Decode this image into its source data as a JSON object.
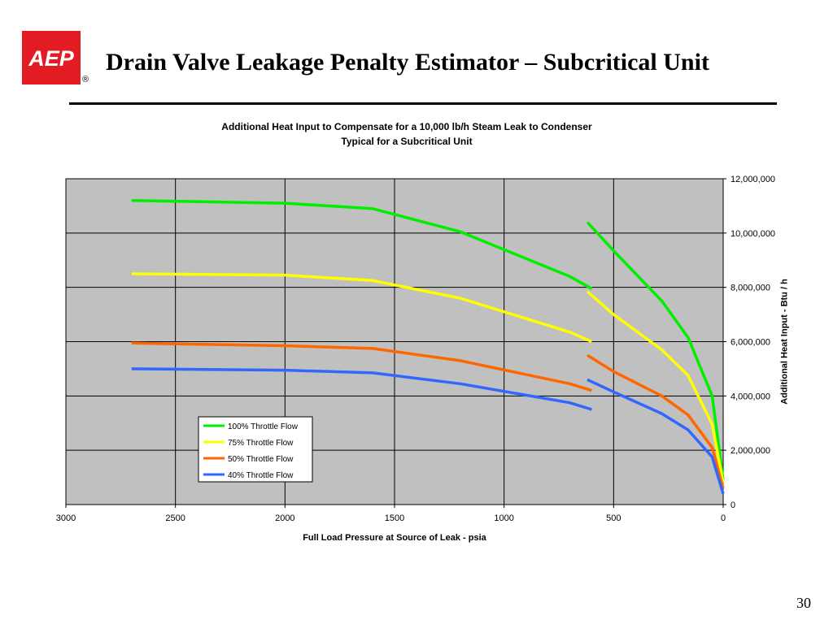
{
  "slide": {
    "title": "Drain Valve Leakage Penalty Estimator – Subcritical Unit",
    "page_number": "30",
    "logo_text": "AEP",
    "logo_mark": "®",
    "brand_color": "#e31b23"
  },
  "chart_data": {
    "type": "line",
    "title": "Additional Heat Input to Compensate for a 10,000 lb/h Steam Leak to Condenser",
    "subtitle": "Typical for a Subcritical Unit",
    "xlabel": "Full Load Pressure at Source of Leak - psia",
    "ylabel": "Additional Heat Input - Btu / h",
    "x_reversed": true,
    "xlim": [
      0,
      3000
    ],
    "ylim": [
      0,
      12000000
    ],
    "x_ticks": [
      3000,
      2500,
      2000,
      1500,
      1000,
      500,
      0
    ],
    "x_tick_labels": [
      "3000",
      "2500",
      "2000",
      "1500",
      "1000",
      "500",
      "0"
    ],
    "y_ticks": [
      0,
      2000000,
      4000000,
      6000000,
      8000000,
      10000000,
      12000000
    ],
    "y_tick_labels": [
      "0",
      "2,000,000",
      "4,000,000",
      "6,000,000",
      "8,000,000",
      "10,000,000",
      "12,000,000"
    ],
    "y_axis_side": "right",
    "grid": true,
    "plot_background": "#c0c0c0",
    "legend_position": "bottom-left",
    "series": [
      {
        "name": "100% Throttle Flow",
        "color": "#00ee00",
        "segments": [
          [
            [
              2700,
              11200000
            ],
            [
              2000,
              11100000
            ],
            [
              1600,
              10900000
            ],
            [
              1200,
              10050000
            ],
            [
              700,
              8400000
            ],
            [
              600,
              7950000
            ]
          ],
          [
            [
              620,
              10400000
            ],
            [
              500,
              9350000
            ],
            [
              280,
              7500000
            ],
            [
              160,
              6150000
            ],
            [
              50,
              4000000
            ],
            [
              0,
              900000
            ]
          ]
        ]
      },
      {
        "name": "75% Throttle Flow",
        "color": "#ffff00",
        "segments": [
          [
            [
              2700,
              8500000
            ],
            [
              2000,
              8450000
            ],
            [
              1600,
              8250000
            ],
            [
              1200,
              7600000
            ],
            [
              700,
              6350000
            ],
            [
              600,
              6000000
            ]
          ],
          [
            [
              620,
              7850000
            ],
            [
              500,
              7000000
            ],
            [
              280,
              5700000
            ],
            [
              160,
              4750000
            ],
            [
              50,
              2950000
            ],
            [
              0,
              800000
            ]
          ]
        ]
      },
      {
        "name": "50% Throttle Flow",
        "color": "#ff6600",
        "segments": [
          [
            [
              2700,
              5950000
            ],
            [
              2000,
              5850000
            ],
            [
              1600,
              5750000
            ],
            [
              1200,
              5300000
            ],
            [
              700,
              4450000
            ],
            [
              600,
              4200000
            ]
          ],
          [
            [
              620,
              5500000
            ],
            [
              500,
              4900000
            ],
            [
              280,
              4000000
            ],
            [
              160,
              3300000
            ],
            [
              50,
              2100000
            ],
            [
              0,
              600000
            ]
          ]
        ]
      },
      {
        "name": "40% Throttle Flow",
        "color": "#3366ff",
        "segments": [
          [
            [
              2700,
              5000000
            ],
            [
              2000,
              4950000
            ],
            [
              1600,
              4850000
            ],
            [
              1200,
              4450000
            ],
            [
              700,
              3750000
            ],
            [
              600,
              3500000
            ]
          ],
          [
            [
              620,
              4600000
            ],
            [
              500,
              4150000
            ],
            [
              280,
              3350000
            ],
            [
              160,
              2750000
            ],
            [
              50,
              1750000
            ],
            [
              0,
              400000
            ]
          ]
        ]
      }
    ]
  }
}
